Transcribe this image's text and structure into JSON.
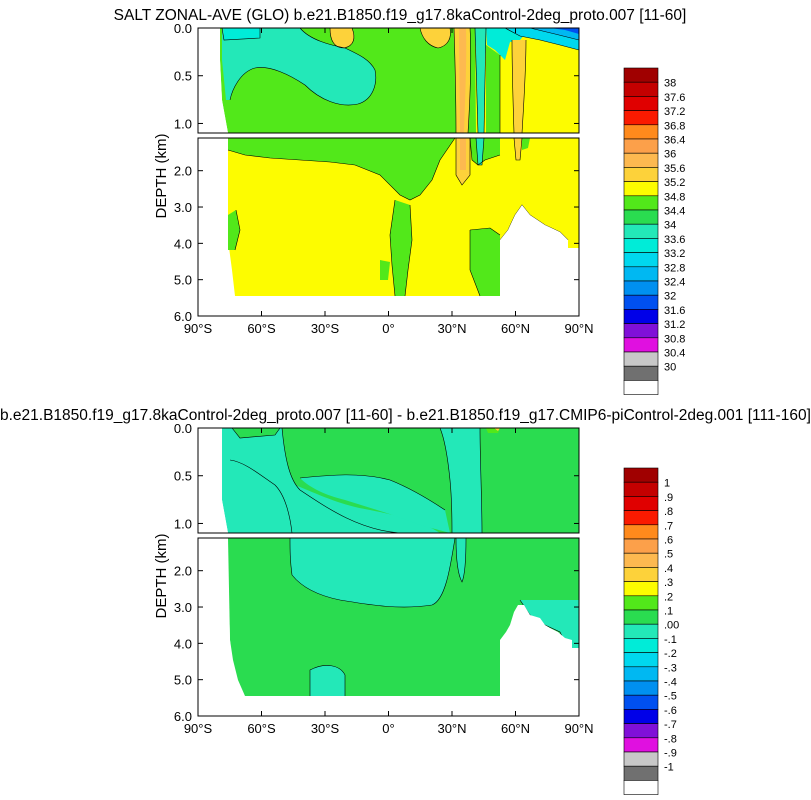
{
  "chart_data": [
    {
      "type": "heatmap",
      "title": "SALT ZONAL-AVE (GLO) b.e21.B1850.f19_g17.8kaControl-2deg_proto.007 [11-60]",
      "ylabel": "DEPTH (km)",
      "xticks": [
        "90°S",
        "60°S",
        "30°S",
        "0°",
        "30°N",
        "60°N",
        "90°N"
      ],
      "xlim": [
        -90,
        90
      ],
      "yticks_upper": [
        "0.0",
        "0.5",
        "1.0"
      ],
      "yticks_lower": [
        "2.0",
        "3.0",
        "4.0",
        "5.0",
        "6.0"
      ],
      "ylim_upper": [
        0,
        1.1
      ],
      "ylim_lower": [
        1.1,
        6.0
      ],
      "colorbar_labels": [
        "38",
        "37.6",
        "37.2",
        "36.8",
        "36.4",
        "36",
        "35.6",
        "35.2",
        "34.8",
        "34.4",
        "34",
        "33.6",
        "33.2",
        "32.8",
        "32.4",
        "32",
        "31.6",
        "31.2",
        "30.8",
        "30.4",
        "30"
      ],
      "colorbar_colors": [
        "#a00000",
        "#c40000",
        "#e00000",
        "#fa1a00",
        "#ff8a1c",
        "#fca04a",
        "#fdb950",
        "#fdd23a",
        "#fdfc00",
        "#52e81a",
        "#2adc50",
        "#23e8b8",
        "#00ecd8",
        "#00d8ee",
        "#00b8f2",
        "#0090f0",
        "#0050f0",
        "#0000e8",
        "#8010d8",
        "#e010e0",
        "#c8c8c8",
        "#707070",
        "#ffffff"
      ]
    },
    {
      "type": "heatmap",
      "title": "b.e21.B1850.f19_g17.8kaControl-2deg_proto.007 [11-60] - b.e21.B1850.f19_g17.CMIP6-piControl-2deg.001 [111-160]",
      "ylabel": "DEPTH (km)",
      "xticks": [
        "90°S",
        "60°S",
        "30°S",
        "0°",
        "30°N",
        "60°N",
        "90°N"
      ],
      "xlim": [
        -90,
        90
      ],
      "yticks_upper": [
        "0.0",
        "0.5",
        "1.0"
      ],
      "yticks_lower": [
        "2.0",
        "3.0",
        "4.0",
        "5.0",
        "6.0"
      ],
      "ylim_upper": [
        0,
        1.1
      ],
      "ylim_lower": [
        1.1,
        6.0
      ],
      "colorbar_labels": [
        "1",
        ".9",
        ".8",
        ".7",
        ".6",
        ".5",
        ".4",
        ".3",
        ".2",
        ".1",
        ".00",
        "-.1",
        "-.2",
        "-.3",
        "-.4",
        "-.5",
        "-.6",
        "-.7",
        "-.8",
        "-.9",
        "-1"
      ],
      "colorbar_colors": [
        "#a00000",
        "#c40000",
        "#e00000",
        "#fa1a00",
        "#ff8a1c",
        "#fca04a",
        "#fdb950",
        "#fdd23a",
        "#fdfc00",
        "#52e81a",
        "#2adc50",
        "#23e8b8",
        "#00ecd8",
        "#00d8ee",
        "#00b8f2",
        "#0090f0",
        "#0050f0",
        "#0000e8",
        "#8010d8",
        "#e010e0",
        "#c8c8c8",
        "#707070",
        "#ffffff"
      ]
    }
  ]
}
